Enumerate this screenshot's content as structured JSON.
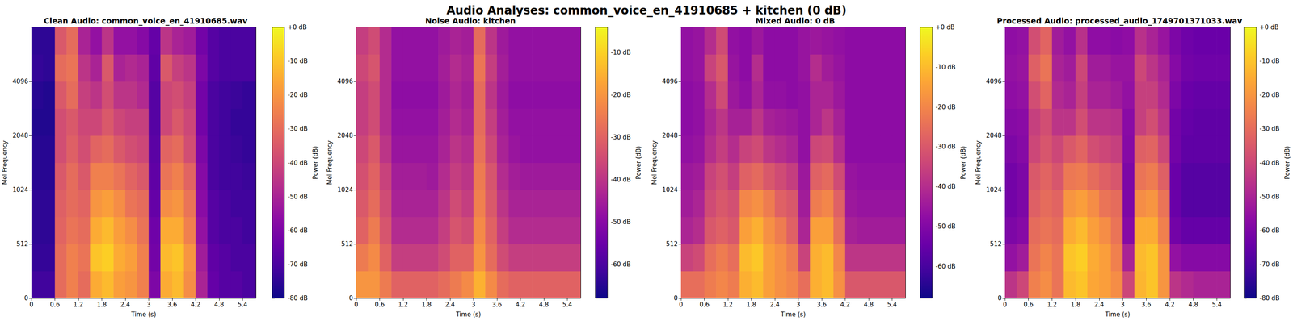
{
  "title": "Audio Analyses: common_voice_en_41910685 + kitchen (0 dB)",
  "chart_data": [
    {
      "type": "heatmap",
      "title": "Clean Audio: common_voice_en_41910685.wav",
      "x_label": "Time (s)",
      "y_label": "Mel Frequency",
      "xlim": [
        0,
        5.74
      ],
      "xticks": [
        0,
        0.6,
        1.2,
        1.8,
        2.4,
        3,
        3.6,
        4.2,
        4.8,
        5.4
      ],
      "ylim": [
        0,
        8192
      ],
      "yticks": [
        0,
        512,
        1024,
        2048,
        4096
      ],
      "x_edges": [
        0,
        0.3,
        0.6,
        0.9,
        1.2,
        1.5,
        1.8,
        2.1,
        2.4,
        2.7,
        3.0,
        3.3,
        3.6,
        3.9,
        4.2,
        4.5,
        4.8,
        5.1,
        5.4,
        5.74
      ],
      "y_edges": [
        0,
        256,
        512,
        768,
        1024,
        1448,
        2048,
        2896,
        4096,
        5793,
        8192
      ],
      "values": [
        [
          -72,
          -72,
          -30,
          -25,
          -30,
          -15,
          -12,
          -18,
          -20,
          -25,
          -60,
          -15,
          -12,
          -22,
          -50,
          -65,
          -68,
          -68,
          -70
        ],
        [
          -74,
          -74,
          -30,
          -25,
          -28,
          -10,
          -8,
          -15,
          -18,
          -25,
          -62,
          -12,
          -10,
          -20,
          -52,
          -66,
          -68,
          -70,
          -70
        ],
        [
          -75,
          -75,
          -32,
          -28,
          -30,
          -15,
          -12,
          -18,
          -22,
          -28,
          -63,
          -15,
          -15,
          -25,
          -55,
          -68,
          -70,
          -70,
          -72
        ],
        [
          -75,
          -75,
          -33,
          -30,
          -32,
          -20,
          -18,
          -22,
          -28,
          -30,
          -65,
          -22,
          -20,
          -28,
          -57,
          -68,
          -70,
          -72,
          -72
        ],
        [
          -76,
          -76,
          -35,
          -30,
          -35,
          -25,
          -25,
          -28,
          -32,
          -35,
          -66,
          -28,
          -25,
          -32,
          -58,
          -70,
          -72,
          -72,
          -73
        ],
        [
          -76,
          -76,
          -38,
          -33,
          -38,
          -32,
          -30,
          -35,
          -38,
          -40,
          -67,
          -32,
          -30,
          -38,
          -60,
          -70,
          -72,
          -73,
          -74
        ],
        [
          -77,
          -77,
          -38,
          -35,
          -40,
          -40,
          -35,
          -40,
          -42,
          -42,
          -68,
          -40,
          -35,
          -40,
          -62,
          -70,
          -72,
          -74,
          -74
        ],
        [
          -76,
          -77,
          -35,
          -30,
          -42,
          -45,
          -38,
          -45,
          -45,
          -48,
          -68,
          -40,
          -38,
          -42,
          -62,
          -70,
          -72,
          -73,
          -74
        ],
        [
          -74,
          -75,
          -30,
          -28,
          -45,
          -50,
          -35,
          -50,
          -48,
          -50,
          -66,
          -35,
          -42,
          -45,
          -60,
          -68,
          -70,
          -70,
          -70
        ],
        [
          -75,
          -75,
          -35,
          -30,
          -50,
          -55,
          -45,
          -55,
          -55,
          -58,
          -65,
          -45,
          -50,
          -52,
          -62,
          -68,
          -70,
          -70,
          -70
        ]
      ],
      "colorbar": {
        "label": "Power (dB)",
        "lim": [
          -80,
          0
        ],
        "ticks": [
          {
            "value": 0,
            "label": "+0 dB"
          },
          {
            "value": -10,
            "label": "-10 dB"
          },
          {
            "value": -20,
            "label": "-20 dB"
          },
          {
            "value": -30,
            "label": "-30 dB"
          },
          {
            "value": -40,
            "label": "-40 dB"
          },
          {
            "value": -50,
            "label": "-50 dB"
          },
          {
            "value": -60,
            "label": "-60 dB"
          },
          {
            "value": -70,
            "label": "-70 dB"
          },
          {
            "value": -80,
            "label": "-80 dB"
          }
        ]
      }
    },
    {
      "type": "heatmap",
      "title": "Noise Audio: kitchen",
      "x_label": "Time (s)",
      "y_label": "Mel Frequency",
      "xlim": [
        0,
        5.74
      ],
      "xticks": [
        0,
        0.6,
        1.2,
        1.8,
        2.4,
        3,
        3.6,
        4.2,
        4.8,
        5.4
      ],
      "ylim": [
        0,
        8192
      ],
      "yticks": [
        0,
        512,
        1024,
        2048,
        4096
      ],
      "x_edges": [
        0,
        0.3,
        0.6,
        0.9,
        1.2,
        1.5,
        1.8,
        2.1,
        2.4,
        2.7,
        3.0,
        3.3,
        3.6,
        3.9,
        4.2,
        4.5,
        4.8,
        5.1,
        5.4,
        5.74
      ],
      "y_edges": [
        0,
        256,
        512,
        768,
        1024,
        1448,
        2048,
        2896,
        4096,
        5793,
        8192
      ],
      "values": [
        [
          -20,
          -20,
          -25,
          -30,
          -30,
          -30,
          -30,
          -28,
          -25,
          -22,
          -15,
          -22,
          -28,
          -30,
          -30,
          -30,
          -30,
          -30,
          -30
        ],
        [
          -25,
          -22,
          -30,
          -38,
          -38,
          -38,
          -38,
          -35,
          -30,
          -30,
          -20,
          -28,
          -35,
          -38,
          -38,
          -38,
          -38,
          -38,
          -38
        ],
        [
          -30,
          -25,
          -33,
          -42,
          -42,
          -42,
          -42,
          -38,
          -33,
          -35,
          -22,
          -30,
          -38,
          -42,
          -42,
          -42,
          -42,
          -42,
          -42
        ],
        [
          -32,
          -28,
          -35,
          -44,
          -44,
          -44,
          -44,
          -40,
          -35,
          -38,
          -24,
          -32,
          -40,
          -44,
          -44,
          -44,
          -44,
          -44,
          -44
        ],
        [
          -34,
          -30,
          -37,
          -45,
          -45,
          -45,
          -46,
          -42,
          -38,
          -40,
          -25,
          -33,
          -42,
          -45,
          -46,
          -46,
          -46,
          -46,
          -46
        ],
        [
          -36,
          -32,
          -40,
          -47,
          -47,
          -47,
          -47,
          -44,
          -40,
          -42,
          -27,
          -36,
          -44,
          -47,
          -48,
          -48,
          -48,
          -48,
          -48
        ],
        [
          -38,
          -35,
          -42,
          -48,
          -48,
          -48,
          -48,
          -45,
          -42,
          -44,
          -28,
          -38,
          -45,
          -48,
          -48,
          -48,
          -48,
          -48,
          -48
        ],
        [
          -38,
          -35,
          -42,
          -49,
          -49,
          -49,
          -49,
          -46,
          -43,
          -45,
          -28,
          -40,
          -46,
          -49,
          -49,
          -49,
          -49,
          -49,
          -49
        ],
        [
          -36,
          -33,
          -42,
          -48,
          -48,
          -48,
          -48,
          -45,
          -42,
          -44,
          -26,
          -38,
          -45,
          -48,
          -48,
          -48,
          -48,
          -48,
          -48
        ],
        [
          -38,
          -35,
          -42,
          -48,
          -48,
          -48,
          -48,
          -46,
          -44,
          -45,
          -28,
          -40,
          -46,
          -48,
          -48,
          -48,
          -48,
          -48,
          -48
        ]
      ],
      "colorbar": {
        "label": "Power (dB)",
        "lim": [
          -68,
          -4
        ],
        "ticks": [
          {
            "value": -10,
            "label": "-10 dB"
          },
          {
            "value": -20,
            "label": "-20 dB"
          },
          {
            "value": -30,
            "label": "-30 dB"
          },
          {
            "value": -40,
            "label": "-40 dB"
          },
          {
            "value": -50,
            "label": "-50 dB"
          },
          {
            "value": -60,
            "label": "-60 dB"
          }
        ]
      }
    },
    {
      "type": "heatmap",
      "title": "Mixed Audio: 0 dB",
      "x_label": "Time (s)",
      "y_label": "Mel Frequency",
      "xlim": [
        0,
        5.74
      ],
      "xticks": [
        0,
        0.6,
        1.2,
        1.8,
        2.4,
        3,
        3.6,
        4.2,
        4.8,
        5.4
      ],
      "ylim": [
        0,
        8192
      ],
      "yticks": [
        0,
        512,
        1024,
        2048,
        4096
      ],
      "x_edges": [
        0,
        0.3,
        0.6,
        0.9,
        1.2,
        1.5,
        1.8,
        2.1,
        2.4,
        2.7,
        3.0,
        3.3,
        3.6,
        3.9,
        4.2,
        4.5,
        4.8,
        5.1,
        5.4,
        5.74
      ],
      "y_edges": [
        0,
        256,
        512,
        768,
        1024,
        1448,
        2048,
        2896,
        4096,
        5793,
        8192
      ],
      "values": [
        [
          -25,
          -25,
          -22,
          -20,
          -22,
          -12,
          -10,
          -15,
          -18,
          -20,
          -25,
          -12,
          -10,
          -18,
          -30,
          -30,
          -30,
          -30,
          -30
        ],
        [
          -35,
          -33,
          -25,
          -22,
          -25,
          -10,
          -8,
          -15,
          -18,
          -22,
          -35,
          -12,
          -10,
          -20,
          -38,
          -38,
          -38,
          -38,
          -38
        ],
        [
          -42,
          -40,
          -30,
          -28,
          -30,
          -15,
          -12,
          -18,
          -22,
          -28,
          -42,
          -15,
          -15,
          -25,
          -43,
          -44,
          -44,
          -44,
          -44
        ],
        [
          -44,
          -42,
          -33,
          -30,
          -32,
          -20,
          -18,
          -22,
          -28,
          -30,
          -44,
          -22,
          -20,
          -28,
          -45,
          -46,
          -46,
          -46,
          -46
        ],
        [
          -45,
          -44,
          -35,
          -32,
          -36,
          -28,
          -26,
          -30,
          -33,
          -36,
          -45,
          -28,
          -26,
          -33,
          -46,
          -47,
          -47,
          -47,
          -47
        ],
        [
          -47,
          -46,
          -40,
          -36,
          -40,
          -35,
          -33,
          -38,
          -40,
          -42,
          -47,
          -34,
          -33,
          -40,
          -48,
          -48,
          -48,
          -48,
          -48
        ],
        [
          -48,
          -47,
          -42,
          -38,
          -43,
          -43,
          -38,
          -43,
          -44,
          -45,
          -47,
          -42,
          -38,
          -43,
          -48,
          -48,
          -48,
          -48,
          -48
        ],
        [
          -48,
          -47,
          -40,
          -33,
          -45,
          -47,
          -42,
          -47,
          -47,
          -48,
          -47,
          -42,
          -42,
          -45,
          -48,
          -48,
          -48,
          -48,
          -48
        ],
        [
          -47,
          -46,
          -35,
          -30,
          -46,
          -48,
          -40,
          -48,
          -48,
          -48,
          -46,
          -40,
          -44,
          -46,
          -48,
          -48,
          -48,
          -48,
          -48
        ],
        [
          -47,
          -46,
          -40,
          -33,
          -47,
          -48,
          -45,
          -48,
          -48,
          -48,
          -46,
          -45,
          -46,
          -47,
          -48,
          -48,
          -48,
          -48,
          -48
        ]
      ],
      "colorbar": {
        "label": "Power (dB)",
        "lim": [
          -68,
          0
        ],
        "ticks": [
          {
            "value": 0,
            "label": "+0 dB"
          },
          {
            "value": -10,
            "label": "-10 dB"
          },
          {
            "value": -20,
            "label": "-20 dB"
          },
          {
            "value": -30,
            "label": "-30 dB"
          },
          {
            "value": -40,
            "label": "-40 dB"
          },
          {
            "value": -50,
            "label": "-50 dB"
          },
          {
            "value": -60,
            "label": "-60 dB"
          }
        ]
      }
    },
    {
      "type": "heatmap",
      "title": "Processed Audio: processed_audio_1749701371033.wav",
      "x_label": "Time (s)",
      "y_label": "Mel Frequency",
      "xlim": [
        0,
        5.74
      ],
      "xticks": [
        0,
        0.6,
        1.2,
        1.8,
        2.4,
        3,
        3.6,
        4.2,
        4.8,
        5.4
      ],
      "ylim": [
        0,
        8192
      ],
      "yticks": [
        0,
        512,
        1024,
        2048,
        4096
      ],
      "x_edges": [
        0,
        0.3,
        0.6,
        0.9,
        1.2,
        1.5,
        1.8,
        2.1,
        2.4,
        2.7,
        3.0,
        3.3,
        3.6,
        3.9,
        4.2,
        4.5,
        4.8,
        5.1,
        5.4,
        5.74
      ],
      "y_edges": [
        0,
        256,
        512,
        768,
        1024,
        1448,
        2048,
        2896,
        4096,
        5793,
        8192
      ],
      "values": [
        [
          -45,
          -40,
          -25,
          -22,
          -28,
          -12,
          -10,
          -16,
          -18,
          -22,
          -40,
          -13,
          -10,
          -20,
          -45,
          -48,
          -50,
          -50,
          -50
        ],
        [
          -55,
          -52,
          -28,
          -24,
          -28,
          -10,
          -8,
          -15,
          -18,
          -25,
          -50,
          -12,
          -10,
          -20,
          -55,
          -58,
          -58,
          -58,
          -58
        ],
        [
          -60,
          -58,
          -30,
          -28,
          -30,
          -15,
          -12,
          -18,
          -22,
          -28,
          -58,
          -15,
          -15,
          -25,
          -62,
          -65,
          -65,
          -65,
          -65
        ],
        [
          -62,
          -60,
          -33,
          -30,
          -32,
          -20,
          -18,
          -22,
          -28,
          -30,
          -60,
          -22,
          -20,
          -28,
          -64,
          -68,
          -68,
          -68,
          -68
        ],
        [
          -62,
          -60,
          -35,
          -32,
          -36,
          -27,
          -26,
          -30,
          -33,
          -36,
          -60,
          -28,
          -26,
          -33,
          -64,
          -68,
          -68,
          -68,
          -68
        ],
        [
          -60,
          -58,
          -40,
          -36,
          -40,
          -35,
          -32,
          -38,
          -40,
          -42,
          -58,
          -33,
          -32,
          -40,
          -62,
          -66,
          -66,
          -66,
          -66
        ],
        [
          -58,
          -57,
          -42,
          -38,
          -45,
          -45,
          -38,
          -45,
          -45,
          -46,
          -57,
          -42,
          -38,
          -45,
          -62,
          -65,
          -66,
          -66,
          -66
        ],
        [
          -56,
          -55,
          -38,
          -32,
          -48,
          -50,
          -42,
          -50,
          -50,
          -52,
          -55,
          -42,
          -42,
          -48,
          -60,
          -64,
          -65,
          -65,
          -65
        ],
        [
          -55,
          -54,
          -33,
          -28,
          -50,
          -52,
          -40,
          -52,
          -52,
          -54,
          -54,
          -40,
          -45,
          -50,
          -58,
          -62,
          -63,
          -63,
          -63
        ],
        [
          -56,
          -55,
          -38,
          -32,
          -52,
          -55,
          -46,
          -56,
          -56,
          -57,
          -56,
          -46,
          -50,
          -54,
          -60,
          -63,
          -64,
          -64,
          -64
        ]
      ],
      "colorbar": {
        "label": "Power (dB)",
        "lim": [
          -80,
          0
        ],
        "ticks": [
          {
            "value": 0,
            "label": "+0 dB"
          },
          {
            "value": -10,
            "label": "-10 dB"
          },
          {
            "value": -20,
            "label": "-20 dB"
          },
          {
            "value": -30,
            "label": "-30 dB"
          },
          {
            "value": -40,
            "label": "-40 dB"
          },
          {
            "value": -50,
            "label": "-50 dB"
          },
          {
            "value": -60,
            "label": "-60 dB"
          },
          {
            "value": -70,
            "label": "-70 dB"
          },
          {
            "value": -80,
            "label": "-80 dB"
          }
        ]
      }
    }
  ]
}
